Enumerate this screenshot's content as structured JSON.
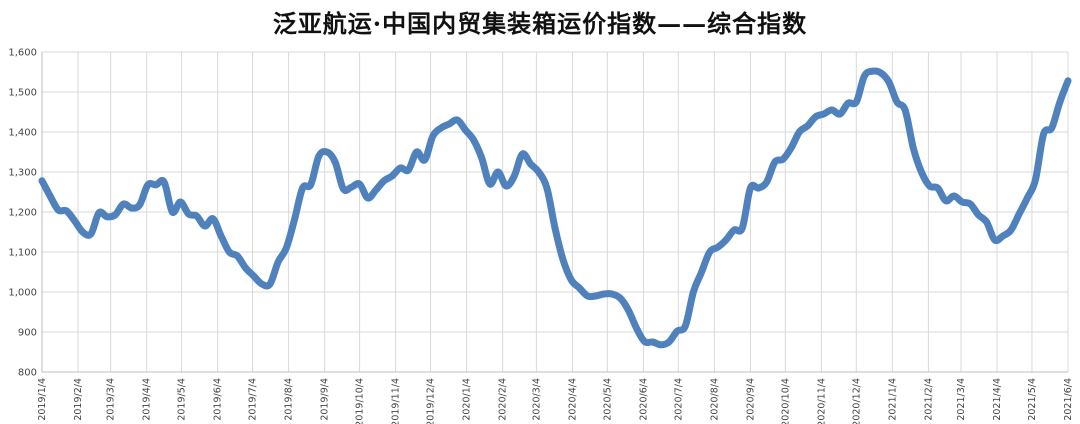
{
  "chart_data": {
    "type": "line",
    "title": "泛亚航运·中国内贸集装箱运价指数——综合指数",
    "xlabel": "",
    "ylabel": "",
    "ylim": [
      800,
      1600
    ],
    "yticks": [
      800,
      900,
      1000,
      1100,
      1200,
      1300,
      1400,
      1500,
      1600
    ],
    "ytick_labels": [
      "800",
      "900",
      "1,000",
      "1,100",
      "1,200",
      "1,300",
      "1,400",
      "1,500",
      "1,600"
    ],
    "xlim": [
      "2019-01-04",
      "2021-06-04"
    ],
    "xticks": [
      "2019/1/4",
      "2019/2/4",
      "2019/3/4",
      "2019/4/4",
      "2019/5/4",
      "2019/6/4",
      "2019/7/4",
      "2019/8/4",
      "2019/9/4",
      "2019/10/4",
      "2019/11/4",
      "2019/12/4",
      "2020/1/4",
      "2020/2/4",
      "2020/3/4",
      "2020/4/4",
      "2020/5/4",
      "2020/6/4",
      "2020/7/4",
      "2020/8/4",
      "2020/9/4",
      "2020/10/4",
      "2020/11/4",
      "2020/12/4",
      "2021/1/4",
      "2021/2/4",
      "2021/3/4",
      "2021/4/4",
      "2021/5/4",
      "2021/6/4"
    ],
    "grid": true,
    "line_color": "#4f81bd",
    "series": [
      {
        "x": [
          "2019-01-04",
          "2019-01-11",
          "2019-01-18",
          "2019-01-25",
          "2019-02-01",
          "2019-02-08",
          "2019-02-15",
          "2019-02-22",
          "2019-03-01",
          "2019-03-08",
          "2019-03-15",
          "2019-03-22",
          "2019-03-29",
          "2019-04-05",
          "2019-04-12",
          "2019-04-19",
          "2019-04-26",
          "2019-05-03",
          "2019-05-10",
          "2019-05-17",
          "2019-05-24",
          "2019-05-31",
          "2019-06-07",
          "2019-06-14",
          "2019-06-21",
          "2019-06-28",
          "2019-07-05",
          "2019-07-12",
          "2019-07-19",
          "2019-07-26",
          "2019-08-02",
          "2019-08-09",
          "2019-08-16",
          "2019-08-23",
          "2019-08-30",
          "2019-09-06",
          "2019-09-13",
          "2019-09-20",
          "2019-09-27",
          "2019-10-04",
          "2019-10-11",
          "2019-10-18",
          "2019-10-25",
          "2019-11-01",
          "2019-11-08",
          "2019-11-15",
          "2019-11-22",
          "2019-11-29",
          "2019-12-06",
          "2019-12-13",
          "2019-12-20",
          "2019-12-27",
          "2020-01-03",
          "2020-01-10",
          "2020-01-17",
          "2020-01-24",
          "2020-01-31",
          "2020-02-07",
          "2020-02-14",
          "2020-02-21",
          "2020-02-28",
          "2020-03-06",
          "2020-03-13",
          "2020-03-20",
          "2020-03-27",
          "2020-04-03",
          "2020-04-10",
          "2020-04-17",
          "2020-04-24",
          "2020-05-01",
          "2020-05-08",
          "2020-05-15",
          "2020-05-22",
          "2020-05-29",
          "2020-06-05",
          "2020-06-12",
          "2020-06-19",
          "2020-06-26",
          "2020-07-03",
          "2020-07-10",
          "2020-07-17",
          "2020-07-24",
          "2020-07-31",
          "2020-08-07",
          "2020-08-14",
          "2020-08-21",
          "2020-08-28",
          "2020-09-04",
          "2020-09-11",
          "2020-09-18",
          "2020-09-25",
          "2020-10-02",
          "2020-10-09",
          "2020-10-16",
          "2020-10-23",
          "2020-10-30",
          "2020-11-06",
          "2020-11-13",
          "2020-11-20",
          "2020-11-27",
          "2020-12-04",
          "2020-12-11",
          "2020-12-18",
          "2020-12-25",
          "2021-01-01",
          "2021-01-08",
          "2021-01-15",
          "2021-01-22",
          "2021-01-29",
          "2021-02-05",
          "2021-02-12",
          "2021-02-19",
          "2021-02-26",
          "2021-03-05",
          "2021-03-12",
          "2021-03-19",
          "2021-03-26",
          "2021-04-02",
          "2021-04-09",
          "2021-04-16",
          "2021-04-23",
          "2021-04-30",
          "2021-05-07",
          "2021-05-14",
          "2021-05-21",
          "2021-05-28",
          "2021-06-04"
        ],
        "values": [
          1278,
          1240,
          1205,
          1203,
          1178,
          1150,
          1145,
          1198,
          1188,
          1193,
          1220,
          1210,
          1218,
          1268,
          1268,
          1275,
          1200,
          1225,
          1195,
          1190,
          1165,
          1183,
          1140,
          1100,
          1090,
          1060,
          1040,
          1020,
          1020,
          1075,
          1110,
          1180,
          1260,
          1268,
          1340,
          1350,
          1325,
          1258,
          1262,
          1270,
          1235,
          1255,
          1278,
          1290,
          1310,
          1305,
          1350,
          1330,
          1390,
          1410,
          1420,
          1430,
          1405,
          1380,
          1335,
          1270,
          1300,
          1265,
          1290,
          1345,
          1320,
          1300,
          1260,
          1160,
          1080,
          1030,
          1010,
          990,
          990,
          995,
          995,
          985,
          955,
          910,
          876,
          875,
          868,
          875,
          902,
          915,
          1000,
          1050,
          1100,
          1112,
          1130,
          1155,
          1160,
          1260,
          1260,
          1275,
          1325,
          1332,
          1360,
          1400,
          1415,
          1438,
          1445,
          1455,
          1445,
          1472,
          1475,
          1540,
          1552,
          1548,
          1525,
          1475,
          1455,
          1360,
          1300,
          1265,
          1260,
          1228,
          1240,
          1225,
          1220,
          1193,
          1175,
          1130,
          1140,
          1155,
          1195,
          1235,
          1280,
          1395,
          1410,
          1475,
          1528
        ]
      }
    ]
  }
}
